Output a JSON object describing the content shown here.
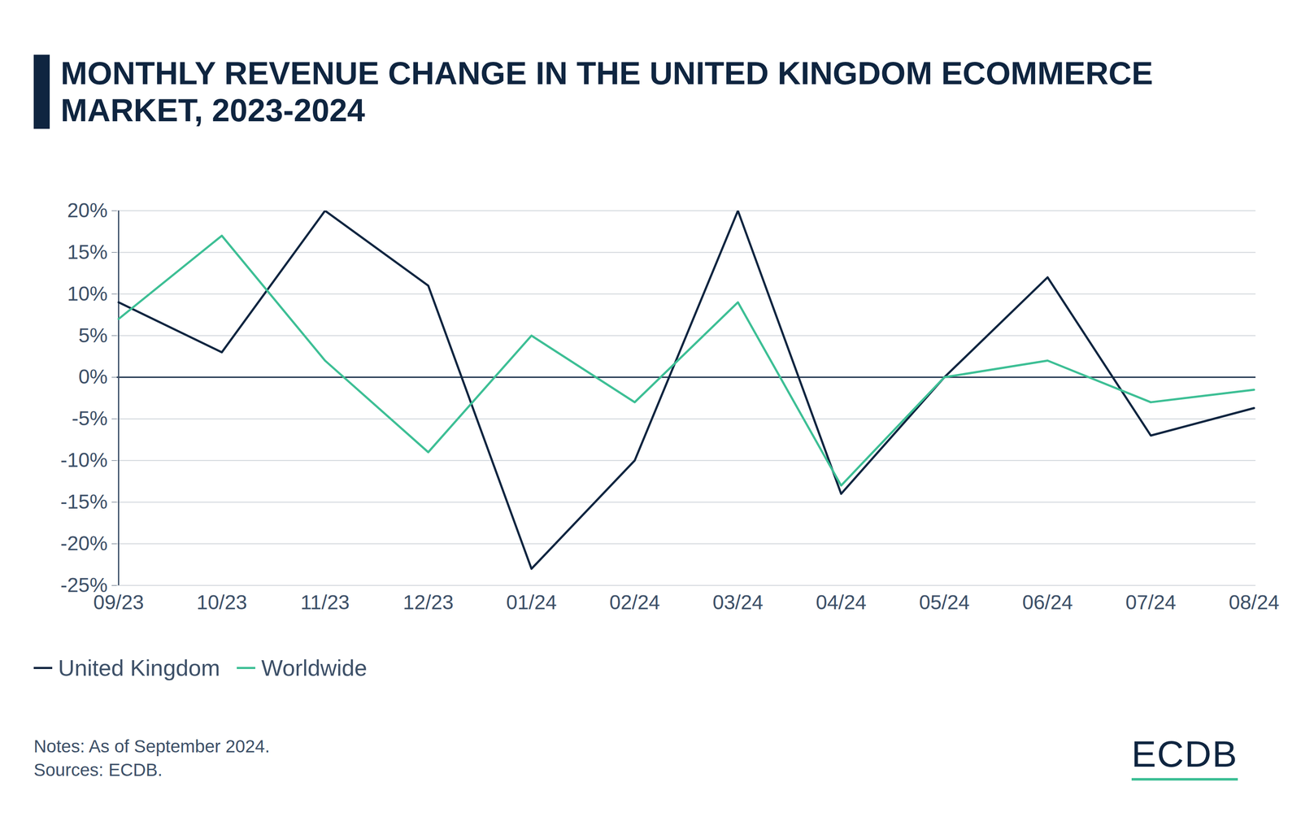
{
  "chart_data": {
    "type": "line",
    "title": "MONTHLY REVENUE CHANGE IN THE UNITED KINGDOM ECOMMERCE MARKET, 2023-2024",
    "categories": [
      "09/23",
      "10/23",
      "11/23",
      "12/23",
      "01/24",
      "02/24",
      "03/24",
      "04/24",
      "05/24",
      "06/24",
      "07/24",
      "08/24"
    ],
    "series": [
      {
        "name": "United Kingdom",
        "color": "#0f2540",
        "values": [
          9,
          3,
          20,
          11,
          -23,
          -10,
          20,
          -14,
          0,
          12,
          -7,
          -3.7
        ]
      },
      {
        "name": "Worldwide",
        "color": "#3dbf95",
        "values": [
          7,
          17,
          2,
          -9,
          5,
          -3,
          9,
          -13,
          0,
          2,
          -3,
          -1.5
        ]
      }
    ],
    "ylim": [
      -25,
      20
    ],
    "yticks": [
      {
        "value": -25,
        "label": "-25%"
      },
      {
        "value": -20,
        "label": "-20%"
      },
      {
        "value": -15,
        "label": "-15%"
      },
      {
        "value": -10,
        "label": "-10%"
      },
      {
        "value": -5,
        "label": "-5%"
      },
      {
        "value": 0,
        "label": "0%"
      },
      {
        "value": 5,
        "label": "5%"
      },
      {
        "value": 10,
        "label": "10%"
      },
      {
        "value": 15,
        "label": "15%"
      },
      {
        "value": 20,
        "label": "20%"
      }
    ],
    "grid": true,
    "legend": "bottom-left",
    "notes": "Notes: As of September 2024.",
    "sources": "Sources: ECDB.",
    "brand": "ECDB"
  }
}
